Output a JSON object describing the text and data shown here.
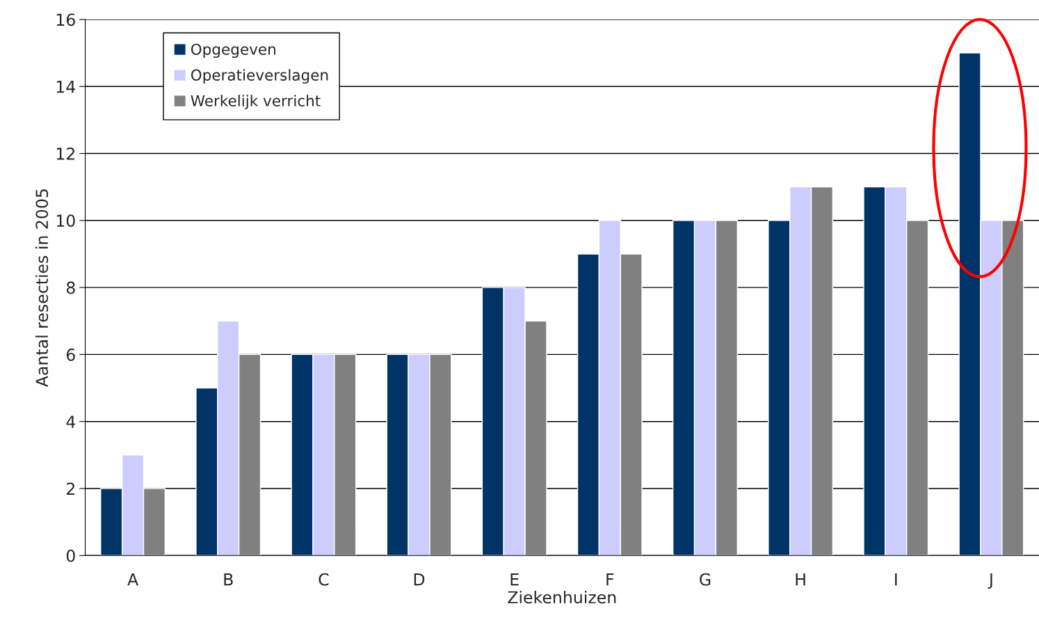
{
  "chart_data": {
    "type": "bar",
    "xlabel": "Ziekenhuizen",
    "ylabel": "Aantal resecties in 2005",
    "categories": [
      "A",
      "B",
      "C",
      "D",
      "E",
      "F",
      "G",
      "H",
      "I",
      "J"
    ],
    "series": [
      {
        "name": "Opgegeven",
        "color": "#003366",
        "values": [
          2,
          5,
          6,
          6,
          8,
          9,
          10,
          10,
          11,
          15
        ]
      },
      {
        "name": "Operatieverslagen",
        "color": "#ccccff",
        "values": [
          3,
          7,
          6,
          6,
          8,
          10,
          10,
          11,
          11,
          10
        ]
      },
      {
        "name": "Werkelijk verricht",
        "color": "#808080",
        "values": [
          2,
          6,
          6,
          6,
          7,
          9,
          10,
          11,
          10,
          10
        ]
      }
    ],
    "ylim": [
      0,
      16
    ],
    "yticks": [
      0,
      2,
      4,
      6,
      8,
      10,
      12,
      14,
      16
    ],
    "grid": "y",
    "legend": "top left"
  }
}
